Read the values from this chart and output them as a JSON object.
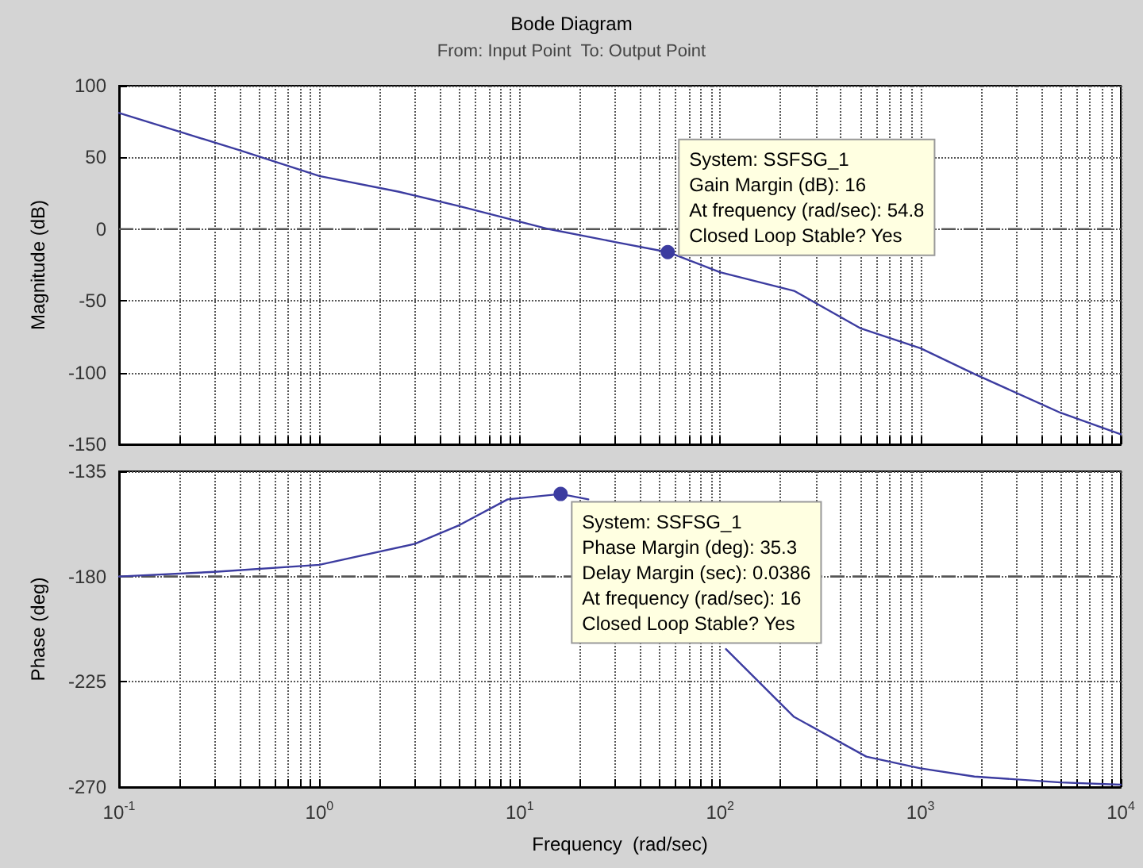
{
  "chart_data": [
    {
      "type": "line",
      "title": "Bode Diagram",
      "subtitle": "From: Input Point  To: Output Point",
      "ylabel": "Magnitude (dB)",
      "log": "x",
      "grid": true,
      "tick_labels": "y",
      "line_style": "solid",
      "color": "#3c3ca0",
      "x": [
        0.1,
        0.2,
        0.4,
        1,
        2.5,
        5,
        14,
        30,
        54.8,
        100,
        234,
        500,
        1000,
        1860,
        5000,
        10000
      ],
      "values": [
        81,
        68,
        55,
        37,
        26,
        16,
        0,
        -9,
        -16,
        -30,
        -43,
        -69,
        -83,
        -101,
        -128,
        -143
      ],
      "xlim": [
        0.1,
        10000
      ],
      "xticks": [
        {
          "value": 0.1,
          "label": null
        },
        {
          "value": 0.2,
          "label": null
        },
        {
          "value": 0.3,
          "label": null
        },
        {
          "value": 0.4,
          "label": null
        },
        {
          "value": 0.5,
          "label": null
        },
        {
          "value": 0.6,
          "label": null
        },
        {
          "value": 0.7,
          "label": null
        },
        {
          "value": 0.8,
          "label": null
        },
        {
          "value": 0.9,
          "label": null
        },
        {
          "value": 1,
          "label": null
        },
        {
          "value": 2,
          "label": null
        },
        {
          "value": 3,
          "label": null
        },
        {
          "value": 4,
          "label": null
        },
        {
          "value": 5,
          "label": null
        },
        {
          "value": 6,
          "label": null
        },
        {
          "value": 7,
          "label": null
        },
        {
          "value": 8,
          "label": null
        },
        {
          "value": 9,
          "label": null
        },
        {
          "value": 10,
          "label": null
        },
        {
          "value": 20,
          "label": null
        },
        {
          "value": 30,
          "label": null
        },
        {
          "value": 40,
          "label": null
        },
        {
          "value": 50,
          "label": null
        },
        {
          "value": 60,
          "label": null
        },
        {
          "value": 70,
          "label": null
        },
        {
          "value": 80,
          "label": null
        },
        {
          "value": 90,
          "label": null
        },
        {
          "value": 100,
          "label": null
        },
        {
          "value": 200,
          "label": null
        },
        {
          "value": 300,
          "label": null
        },
        {
          "value": 400,
          "label": null
        },
        {
          "value": 500,
          "label": null
        },
        {
          "value": 600,
          "label": null
        },
        {
          "value": 700,
          "label": null
        },
        {
          "value": 800,
          "label": null
        },
        {
          "value": 900,
          "label": null
        },
        {
          "value": 1000,
          "label": null
        },
        {
          "value": 2000,
          "label": null
        },
        {
          "value": 3000,
          "label": null
        },
        {
          "value": 4000,
          "label": null
        },
        {
          "value": 5000,
          "label": null
        },
        {
          "value": 6000,
          "label": null
        },
        {
          "value": 7000,
          "label": null
        },
        {
          "value": 8000,
          "label": null
        },
        {
          "value": 9000,
          "label": null
        },
        {
          "value": 10000,
          "label": null
        }
      ],
      "ylim": [
        -150,
        100
      ],
      "yticks": [
        -150,
        -100,
        -50,
        0,
        50,
        100
      ],
      "ref_lines": [
        {
          "axis": "y",
          "value": 0,
          "color": "#555555",
          "line_style": "dashed"
        }
      ],
      "annotations": [
        {
          "text": "System: SSFSG_1\nGain Margin (dB): 16\nAt frequency (rad/sec): 54.8\nClosed Loop Stable? Yes",
          "x": 54.8,
          "y": -16
        }
      ]
    },
    {
      "type": "line",
      "ylabel": "Phase (deg)",
      "xlabel": "Frequency  (rad/sec)",
      "log": "x",
      "grid": true,
      "line_style": "solid",
      "color": "#3c3ca0",
      "x": [
        0.1,
        0.3,
        1,
        3,
        5,
        8.7,
        16,
        22,
        40,
        107,
        234,
        537,
        1000,
        1860,
        5000,
        10000
      ],
      "values": [
        -180,
        -178,
        -175,
        -166,
        -158,
        -147,
        -144.7,
        -147,
        null,
        -211,
        -240,
        -257,
        -262,
        -265.5,
        -268,
        -269
      ],
      "xlim": [
        0.1,
        10000
      ],
      "xticks": [
        {
          "value": 0.1,
          "label": "10$^{-1}$"
        },
        {
          "value": 0.2,
          "label": null
        },
        {
          "value": 0.3,
          "label": null
        },
        {
          "value": 0.4,
          "label": null
        },
        {
          "value": 0.5,
          "label": null
        },
        {
          "value": 0.6,
          "label": null
        },
        {
          "value": 0.7,
          "label": null
        },
        {
          "value": 0.8,
          "label": null
        },
        {
          "value": 0.9,
          "label": null
        },
        {
          "value": 1,
          "label": "10$^{0}$"
        },
        {
          "value": 2,
          "label": null
        },
        {
          "value": 3,
          "label": null
        },
        {
          "value": 4,
          "label": null
        },
        {
          "value": 5,
          "label": null
        },
        {
          "value": 6,
          "label": null
        },
        {
          "value": 7,
          "label": null
        },
        {
          "value": 8,
          "label": null
        },
        {
          "value": 9,
          "label": null
        },
        {
          "value": 10,
          "label": "10$^{1}$"
        },
        {
          "value": 20,
          "label": null
        },
        {
          "value": 30,
          "label": null
        },
        {
          "value": 40,
          "label": null
        },
        {
          "value": 50,
          "label": null
        },
        {
          "value": 60,
          "label": null
        },
        {
          "value": 70,
          "label": null
        },
        {
          "value": 80,
          "label": null
        },
        {
          "value": 90,
          "label": null
        },
        {
          "value": 100,
          "label": "10$^{2}$"
        },
        {
          "value": 200,
          "label": null
        },
        {
          "value": 300,
          "label": null
        },
        {
          "value": 400,
          "label": null
        },
        {
          "value": 500,
          "label": null
        },
        {
          "value": 600,
          "label": null
        },
        {
          "value": 700,
          "label": null
        },
        {
          "value": 800,
          "label": null
        },
        {
          "value": 900,
          "label": null
        },
        {
          "value": 1000,
          "label": "10$^{3}$"
        },
        {
          "value": 2000,
          "label": null
        },
        {
          "value": 3000,
          "label": null
        },
        {
          "value": 4000,
          "label": null
        },
        {
          "value": 5000,
          "label": null
        },
        {
          "value": 6000,
          "label": null
        },
        {
          "value": 7000,
          "label": null
        },
        {
          "value": 8000,
          "label": null
        },
        {
          "value": 9000,
          "label": null
        },
        {
          "value": 10000,
          "label": "10$^{4}$"
        }
      ],
      "ylim": [
        -270,
        -135
      ],
      "yticks": [
        -270,
        -225,
        -180,
        -135
      ],
      "ref_lines": [
        {
          "axis": "y",
          "value": -180,
          "color": "#555555",
          "line_style": "dashed"
        }
      ],
      "annotations": [
        {
          "text": "System: SSFSG_1\nPhase Margin (deg): 35.3\nDelay Margin (sec): 0.0386\nAt frequency (rad/sec): 16\nClosed Loop Stable? Yes",
          "x": 16,
          "y": -144.7
        }
      ]
    }
  ]
}
